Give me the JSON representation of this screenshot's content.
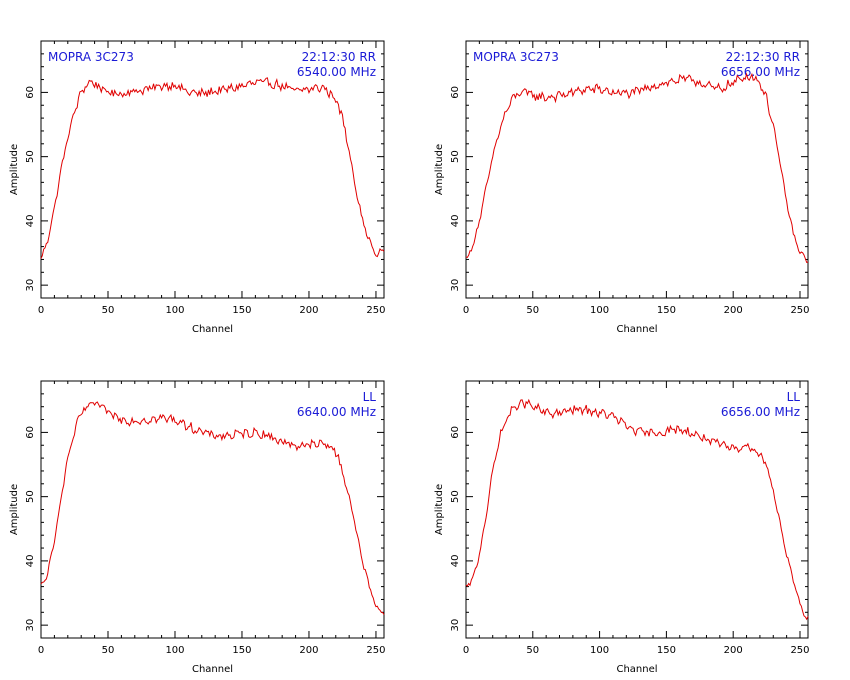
{
  "chart_data": [
    {
      "type": "line",
      "xlabel": "Channel",
      "ylabel": "Amplitude",
      "xlim": [
        0,
        256
      ],
      "ylim": [
        28,
        68
      ],
      "xticks": [
        0,
        50,
        100,
        150,
        200,
        250
      ],
      "yticks": [
        30,
        40,
        50,
        60
      ],
      "grid": false,
      "annotations": {
        "top_left": "MOPRA 3C273",
        "top_right_1": "22:12:30  RR",
        "top_right_2": "6540.00  MHz"
      },
      "series": [
        {
          "color": "#e00000",
          "x": [
            0,
            5,
            10,
            15,
            20,
            25,
            30,
            35,
            40,
            45,
            50,
            60,
            70,
            80,
            90,
            100,
            110,
            120,
            130,
            140,
            150,
            160,
            170,
            180,
            190,
            200,
            210,
            215,
            220,
            225,
            230,
            235,
            240,
            245,
            250,
            255
          ],
          "y": [
            34,
            37,
            42,
            48,
            53,
            57,
            60,
            61.5,
            61.5,
            60.5,
            60,
            59.8,
            60.2,
            60.5,
            61,
            61.2,
            60,
            59.8,
            60.2,
            60.5,
            61,
            61.5,
            61.5,
            61,
            60.2,
            60.5,
            60.8,
            60,
            59,
            56,
            51,
            45,
            40,
            37,
            34.5,
            35.5
          ]
        }
      ]
    },
    {
      "type": "line",
      "xlabel": "Channel",
      "ylabel": "Amplitude",
      "xlim": [
        0,
        256
      ],
      "ylim": [
        28,
        68
      ],
      "xticks": [
        0,
        50,
        100,
        150,
        200,
        250
      ],
      "yticks": [
        30,
        40,
        50,
        60
      ],
      "grid": false,
      "annotations": {
        "top_left": "MOPRA 3C273",
        "top_right_1": "22:12:30  RR",
        "top_right_2": "6656.00  MHz"
      },
      "series": [
        {
          "color": "#e00000",
          "x": [
            0,
            5,
            10,
            15,
            20,
            25,
            30,
            35,
            40,
            45,
            50,
            60,
            70,
            80,
            90,
            100,
            110,
            120,
            130,
            140,
            150,
            160,
            170,
            180,
            190,
            200,
            210,
            215,
            220,
            225,
            230,
            235,
            240,
            245,
            250,
            255
          ],
          "y": [
            34,
            36,
            40,
            45,
            50,
            54,
            57,
            59,
            60,
            60,
            59.5,
            59.2,
            59.5,
            60,
            60.5,
            60.5,
            60,
            59.8,
            60.2,
            61,
            61.5,
            62,
            62,
            61,
            60.5,
            61.5,
            62.5,
            62.5,
            61.5,
            59,
            55,
            49,
            43,
            38,
            35,
            34
          ]
        }
      ]
    },
    {
      "type": "line",
      "xlabel": "Channel",
      "ylabel": "Amplitude",
      "xlim": [
        0,
        256
      ],
      "ylim": [
        28,
        68
      ],
      "xticks": [
        0,
        50,
        100,
        150,
        200,
        250
      ],
      "yticks": [
        30,
        40,
        50,
        60
      ],
      "grid": false,
      "annotations": {
        "top_left": "",
        "top_right_1": "LL",
        "top_right_2": "6640.00  MHz"
      },
      "series": [
        {
          "color": "#e00000",
          "x": [
            0,
            5,
            10,
            15,
            20,
            25,
            30,
            35,
            40,
            45,
            50,
            60,
            70,
            80,
            90,
            100,
            110,
            120,
            130,
            140,
            150,
            160,
            170,
            180,
            190,
            200,
            210,
            215,
            220,
            225,
            230,
            235,
            240,
            245,
            250,
            255
          ],
          "y": [
            36,
            38,
            43,
            50,
            56,
            60,
            63,
            64,
            64.5,
            64,
            63,
            62,
            61.8,
            62,
            62.2,
            62,
            61,
            60,
            59.5,
            59.5,
            59.8,
            60,
            59.5,
            58.5,
            58,
            58,
            58.2,
            58,
            57,
            54,
            50,
            45,
            40,
            36,
            33,
            32
          ]
        }
      ]
    },
    {
      "type": "line",
      "xlabel": "Channel",
      "ylabel": "Amplitude",
      "xlim": [
        0,
        256
      ],
      "ylim": [
        28,
        68
      ],
      "xticks": [
        0,
        50,
        100,
        150,
        200,
        250
      ],
      "yticks": [
        30,
        40,
        50,
        60
      ],
      "grid": false,
      "annotations": {
        "top_left": "",
        "top_right_1": "LL",
        "top_right_2": "6656.00  MHz"
      },
      "series": [
        {
          "color": "#e00000",
          "x": [
            0,
            5,
            10,
            15,
            20,
            25,
            30,
            35,
            40,
            45,
            50,
            60,
            70,
            80,
            90,
            100,
            110,
            120,
            130,
            140,
            150,
            160,
            170,
            180,
            190,
            200,
            210,
            215,
            220,
            225,
            230,
            235,
            240,
            245,
            250,
            255
          ],
          "y": [
            36,
            37,
            41,
            47,
            54,
            59,
            62,
            63.5,
            64.5,
            64.5,
            64,
            63,
            63,
            63.5,
            63.5,
            63,
            62.5,
            61,
            60,
            59.8,
            60.2,
            60.5,
            59.8,
            59,
            58,
            57.5,
            58,
            57.5,
            56.5,
            55,
            51,
            46,
            41,
            37,
            33,
            31
          ]
        }
      ]
    }
  ]
}
